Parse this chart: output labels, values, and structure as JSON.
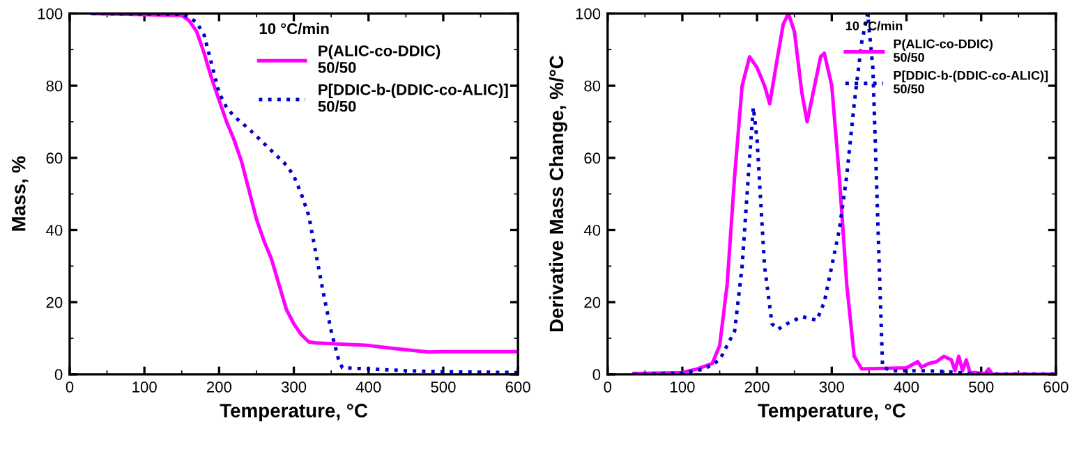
{
  "chart_data": [
    {
      "type": "line",
      "xlabel": "Temperature, °C",
      "ylabel": "Mass, %",
      "legend_title": "10 °C/min",
      "legend": "top right",
      "xlim": [
        0,
        600
      ],
      "ylim": [
        0,
        100
      ],
      "xticks": [
        0,
        100,
        200,
        300,
        400,
        500,
        600
      ],
      "yticks": [
        0,
        20,
        40,
        60,
        80,
        100
      ],
      "grid": false,
      "series": [
        {
          "name": "P(ALIC-co-DDIC)\n50/50",
          "color": "#ff00ff",
          "line_style": "solid",
          "x": [
            30,
            150,
            160,
            170,
            180,
            190,
            200,
            210,
            220,
            230,
            240,
            250,
            260,
            270,
            280,
            290,
            300,
            310,
            320,
            330,
            350,
            400,
            420,
            450,
            480,
            500,
            600
          ],
          "values": [
            100,
            99.5,
            98,
            95,
            89,
            82,
            76,
            70,
            65,
            59,
            51,
            43,
            37,
            32,
            25,
            18,
            14,
            11,
            9,
            8.7,
            8.5,
            8,
            7.5,
            6.8,
            6.2,
            6.3,
            6.3
          ]
        },
        {
          "name": "P[DDIC-b-(DDIC-co-ALIC)]\n50/50",
          "color": "#0000cc",
          "line_style": "dotted",
          "x": [
            30,
            150,
            160,
            170,
            180,
            190,
            200,
            210,
            220,
            240,
            260,
            280,
            290,
            300,
            310,
            320,
            330,
            340,
            350,
            360,
            365,
            400,
            450,
            500,
            600
          ],
          "values": [
            100,
            99.8,
            99,
            97.5,
            94,
            86,
            78,
            74,
            71.5,
            68,
            64,
            60,
            58,
            55,
            50,
            44,
            33,
            22,
            12,
            4,
            1.8,
            1.5,
            1,
            0.7,
            0.5
          ]
        }
      ]
    },
    {
      "type": "line",
      "xlabel": "Temperature, °C",
      "ylabel": "Derivative Mass Change, %/°C",
      "legend_title": "10 °C/min",
      "legend": "top right",
      "xlim": [
        0,
        600
      ],
      "ylim": [
        0,
        100
      ],
      "xticks": [
        0,
        100,
        200,
        300,
        400,
        500,
        600
      ],
      "yticks": [
        0,
        20,
        40,
        60,
        80,
        100
      ],
      "grid": false,
      "series": [
        {
          "name": "P(ALIC-co-DDIC)\n50/50",
          "color": "#ff00ff",
          "line_style": "solid",
          "x": [
            35,
            100,
            120,
            140,
            150,
            160,
            170,
            180,
            190,
            200,
            210,
            217,
            225,
            235,
            242,
            250,
            260,
            267,
            275,
            285,
            290,
            300,
            310,
            320,
            330,
            340,
            400,
            415,
            420,
            430,
            440,
            450,
            460,
            465,
            470,
            475,
            480,
            485,
            490,
            505,
            510,
            515,
            600
          ],
          "values": [
            0.2,
            0.5,
            1.5,
            3,
            8,
            25,
            55,
            80,
            88,
            85,
            80,
            75,
            85,
            97,
            100,
            95,
            78,
            70,
            78,
            88,
            89,
            80,
            55,
            25,
            5,
            1.5,
            1.8,
            3.5,
            2,
            3,
            3.5,
            5,
            4,
            1,
            5,
            1,
            4,
            0.5,
            0.5,
            0.2,
            1.5,
            0,
            0
          ]
        },
        {
          "name": "P[DDIC-b-(DDIC-co-ALIC)]\n50/50",
          "color": "#0000cc",
          "line_style": "dotted",
          "x": [
            35,
            100,
            130,
            150,
            170,
            180,
            190,
            195,
            200,
            210,
            220,
            228,
            240,
            260,
            280,
            290,
            300,
            310,
            320,
            330,
            340,
            348,
            355,
            362,
            368,
            380,
            420,
            450,
            480,
            500,
            600
          ],
          "values": [
            0,
            0.3,
            1.5,
            4,
            12,
            30,
            60,
            74,
            65,
            30,
            14,
            12.5,
            14,
            16,
            15,
            20,
            30,
            40,
            55,
            75,
            92,
            100,
            85,
            40,
            2,
            1,
            1,
            0.8,
            0.3,
            0,
            0
          ]
        }
      ]
    }
  ]
}
